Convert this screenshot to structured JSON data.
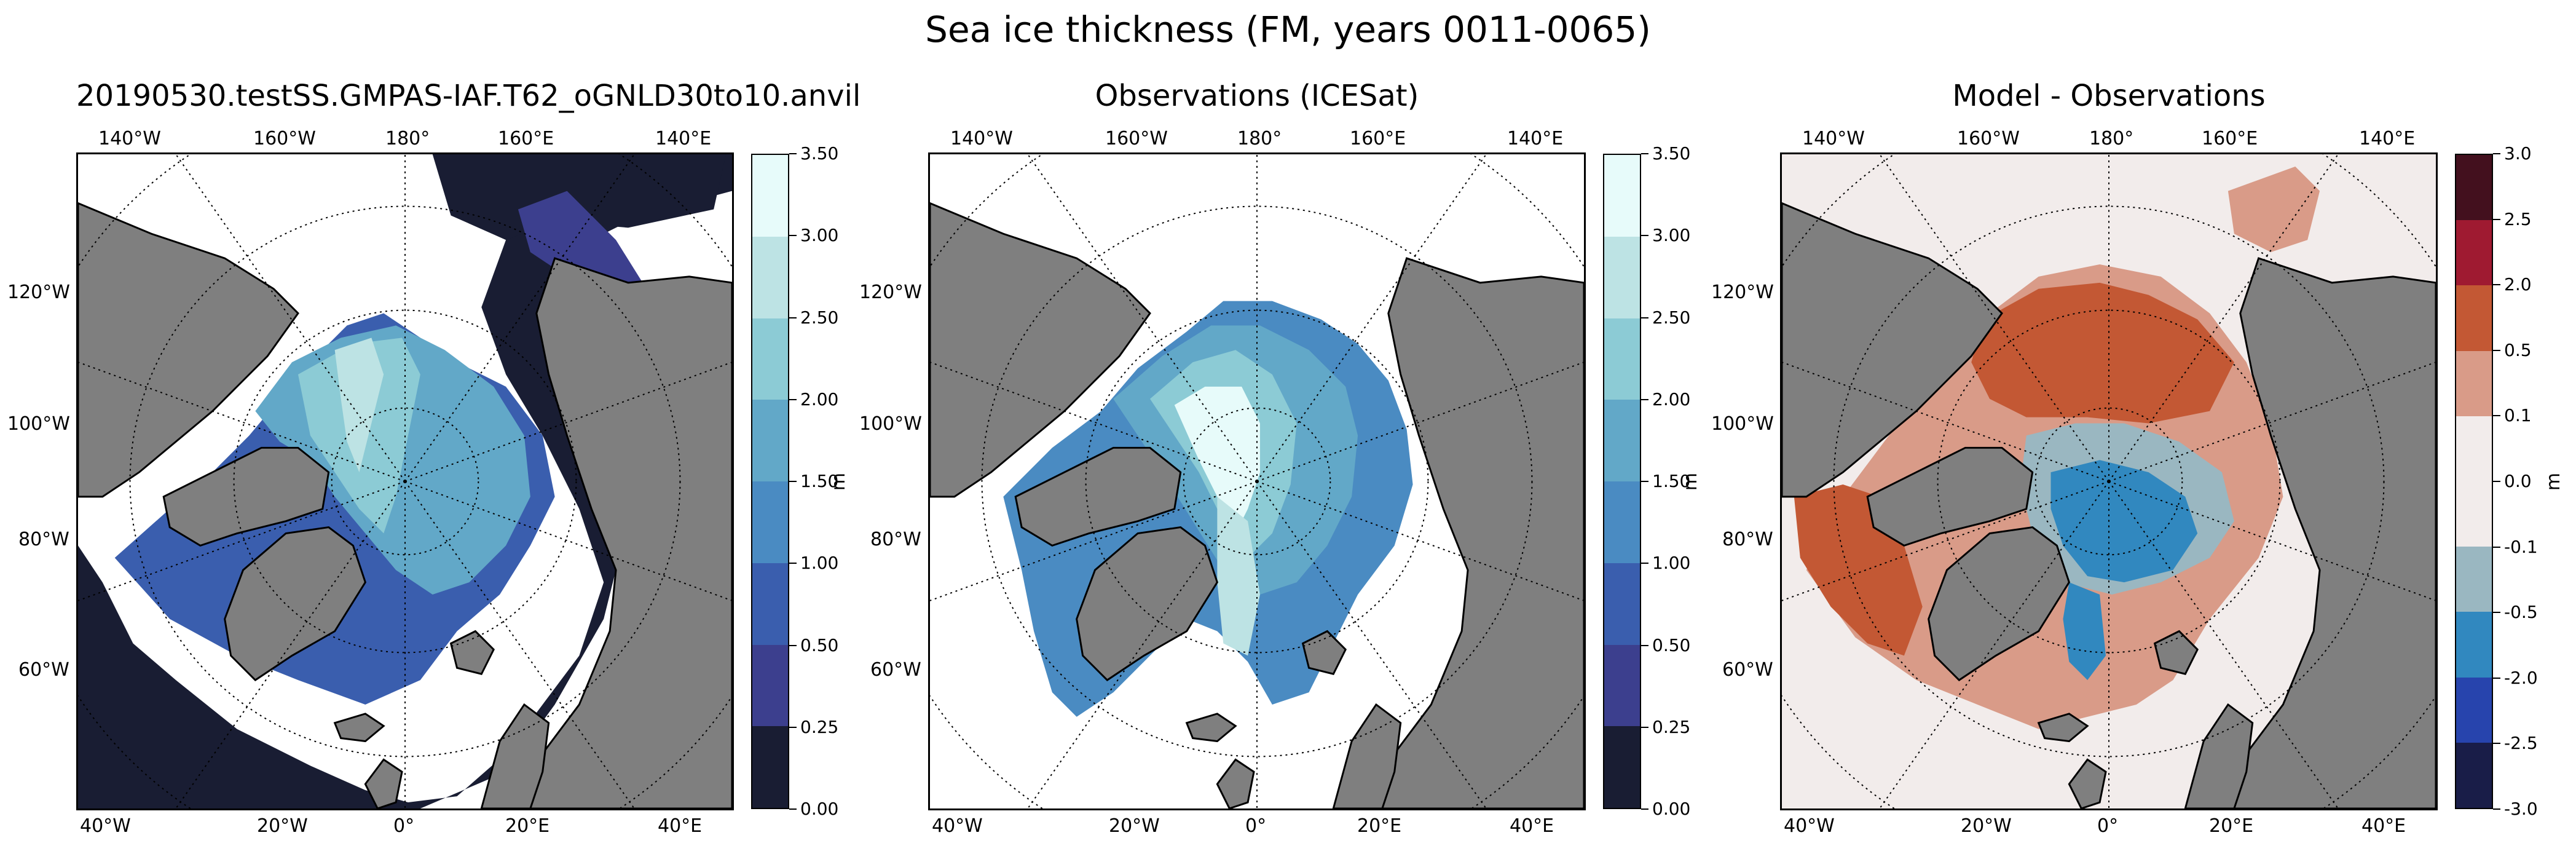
{
  "suptitle": "Sea ice thickness (FM, years 0011-0065)",
  "colors": {
    "land": "#7f7f7f",
    "ocean_missing": "#ffffff",
    "thickness_levels": [
      "#191d33",
      "#3c3f8e",
      "#3a5eae",
      "#4a8bc2",
      "#62a8c8",
      "#8ccbd5",
      "#bde3e4",
      "#e7fbfa"
    ],
    "diff_levels": [
      "#191d48",
      "#2744ad",
      "#3188bf",
      "#9ab7c1",
      "#f2eceb",
      "#d99b88",
      "#c35834",
      "#9f1a31",
      "#43101e"
    ]
  },
  "panels": [
    {
      "title": "20190530.testSS.GMPAS-IAF.T62_oGNLD30to10.anvil",
      "lon_top": [
        "140°W",
        "160°W",
        "180°",
        "160°E",
        "140°E"
      ],
      "lat_left": [
        "120°W",
        "100°W",
        "80°W",
        "60°W"
      ],
      "lon_bottom": [
        "40°W",
        "20°W",
        "0°",
        "20°E",
        "40°E"
      ],
      "colorbar": {
        "ticks": [
          "0.00",
          "0.25",
          "0.50",
          "1.00",
          "1.50",
          "2.00",
          "2.50",
          "3.00",
          "3.50"
        ],
        "unit": "m"
      }
    },
    {
      "title": "Observations (ICESat)",
      "lon_top": [
        "140°W",
        "160°W",
        "180°",
        "160°E",
        "140°E"
      ],
      "lat_left": [
        "120°W",
        "100°W",
        "80°W",
        "60°W"
      ],
      "lon_bottom": [
        "40°W",
        "20°W",
        "0°",
        "20°E",
        "40°E"
      ],
      "colorbar": {
        "ticks": [
          "0.00",
          "0.25",
          "0.50",
          "1.00",
          "1.50",
          "2.00",
          "2.50",
          "3.00",
          "3.50"
        ],
        "unit": "m"
      }
    },
    {
      "title": "Model - Observations",
      "lon_top": [
        "140°W",
        "160°W",
        "180°",
        "160°E",
        "140°E"
      ],
      "lat_left": [
        "120°W",
        "100°W",
        "80°W",
        "60°W"
      ],
      "lon_bottom": [
        "40°W",
        "20°W",
        "0°",
        "20°E",
        "40°E"
      ],
      "colorbar": {
        "ticks": [
          "-3.0",
          "-2.5",
          "-2.0",
          "-0.5",
          "-0.1",
          "0.0",
          "0.1",
          "0.5",
          "2.0",
          "2.5",
          "3.0"
        ],
        "unit": "m"
      }
    }
  ]
}
